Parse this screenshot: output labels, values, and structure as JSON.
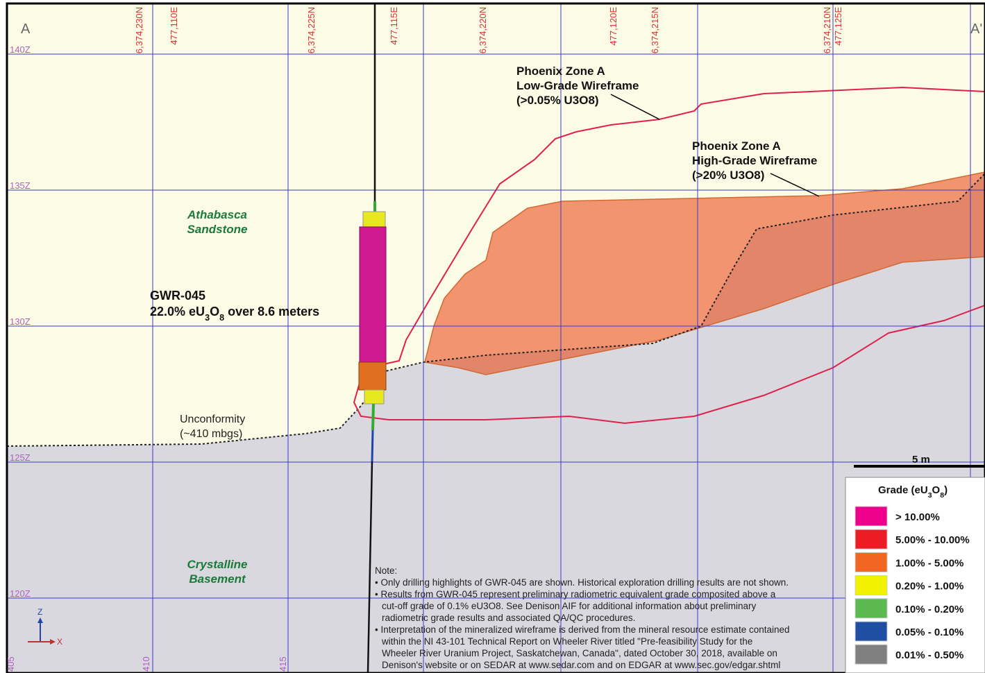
{
  "section": {
    "start": "A",
    "end": "A'"
  },
  "elevations": [
    "140Z",
    "135Z",
    "130Z",
    "125Z",
    "120Z"
  ],
  "grid_labels": [
    "6,374,230N",
    "477,110E",
    "6,374,225N",
    "477,115E",
    "6,374,220N",
    "477,120E",
    "6,374,215N",
    "6,374,210N",
    "477,125E"
  ],
  "bottom_labels": [
    "405",
    "410",
    "415"
  ],
  "units": {
    "scale": "5 m",
    "z": "Z",
    "x": "X"
  },
  "annotations": {
    "low_grade": [
      "Phoenix Zone A",
      "Low-Grade Wireframe",
      "(>0.05% U3O8)"
    ],
    "high_grade": [
      "Phoenix Zone A",
      "High-Grade Wireframe",
      "(>20% U3O8)"
    ],
    "sandstone": [
      "Athabasca",
      "Sandstone"
    ],
    "basement": [
      "Crystalline",
      "Basement"
    ],
    "unconformity": [
      "Unconformity",
      "(~410 mbgs)"
    ],
    "hole": {
      "name": "GWR-045",
      "grade": [
        "22.0% eU",
        "3",
        "O",
        "8",
        " over 8.6 meters"
      ]
    }
  },
  "legend": {
    "title": [
      "Grade (eU",
      "3",
      "O",
      "8",
      ")"
    ],
    "items": [
      {
        "label": "> 10.00%",
        "color": "#ec008c"
      },
      {
        "label": "5.00% - 10.00%",
        "color": "#ed1c24"
      },
      {
        "label": "1.00% - 5.00%",
        "color": "#f26522"
      },
      {
        "label": "0.20% - 1.00%",
        "color": "#f2f200"
      },
      {
        "label": "0.10% - 0.20%",
        "color": "#5cb94f"
      },
      {
        "label": "0.05% - 0.10%",
        "color": "#1f4fa3"
      },
      {
        "label": "0.01% - 0.50%",
        "color": "#808080"
      }
    ]
  },
  "note": [
    "Note:",
    "• Only drilling highlights of GWR-045 are shown. Historical exploration drilling results are not shown.",
    "• Results from GWR-045 represent preliminary radiometric equivalent grade composited above a",
    "cut-off grade of 0.1% eU3O8. See Denison AIF for additional information about preliminary",
    "radiometric grade results and associated QA/QC procedures.",
    "• Interpretation of the mineralized wireframe is derived from the mineral resource estimate contained",
    "within the NI 43-101 Technical Report on Wheeler River titled \"Pre-feasibility Study for the",
    "Wheeler River Uranium Project, Saskatchewan, Canada\", dated October 30, 2018, available on",
    "Denison's website or on SEDAR at www.sedar.com and on EDGAR at www.sec.gov/edgar.shtml"
  ]
}
